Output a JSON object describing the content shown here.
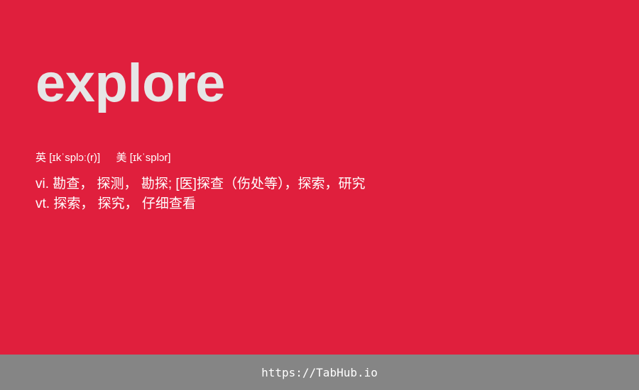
{
  "word": "explore",
  "phonetics": {
    "uk_label": "英",
    "uk_ipa": "[ɪkˈsplɔː(r)]",
    "us_label": "美",
    "us_ipa": "[ɪkˈsplɔr]"
  },
  "definitions": [
    {
      "pos": "vi.",
      "meaning": "勘查， 探测， 勘探; [医]探查（伤处等），探索，研究"
    },
    {
      "pos": "vt.",
      "meaning": "探索， 探究， 仔细查看"
    }
  ],
  "footer": {
    "link": "https://TabHub.io"
  },
  "colors": {
    "background": "#e01f3d",
    "word": "#e6e6e6",
    "footer_bar": "#858585"
  }
}
